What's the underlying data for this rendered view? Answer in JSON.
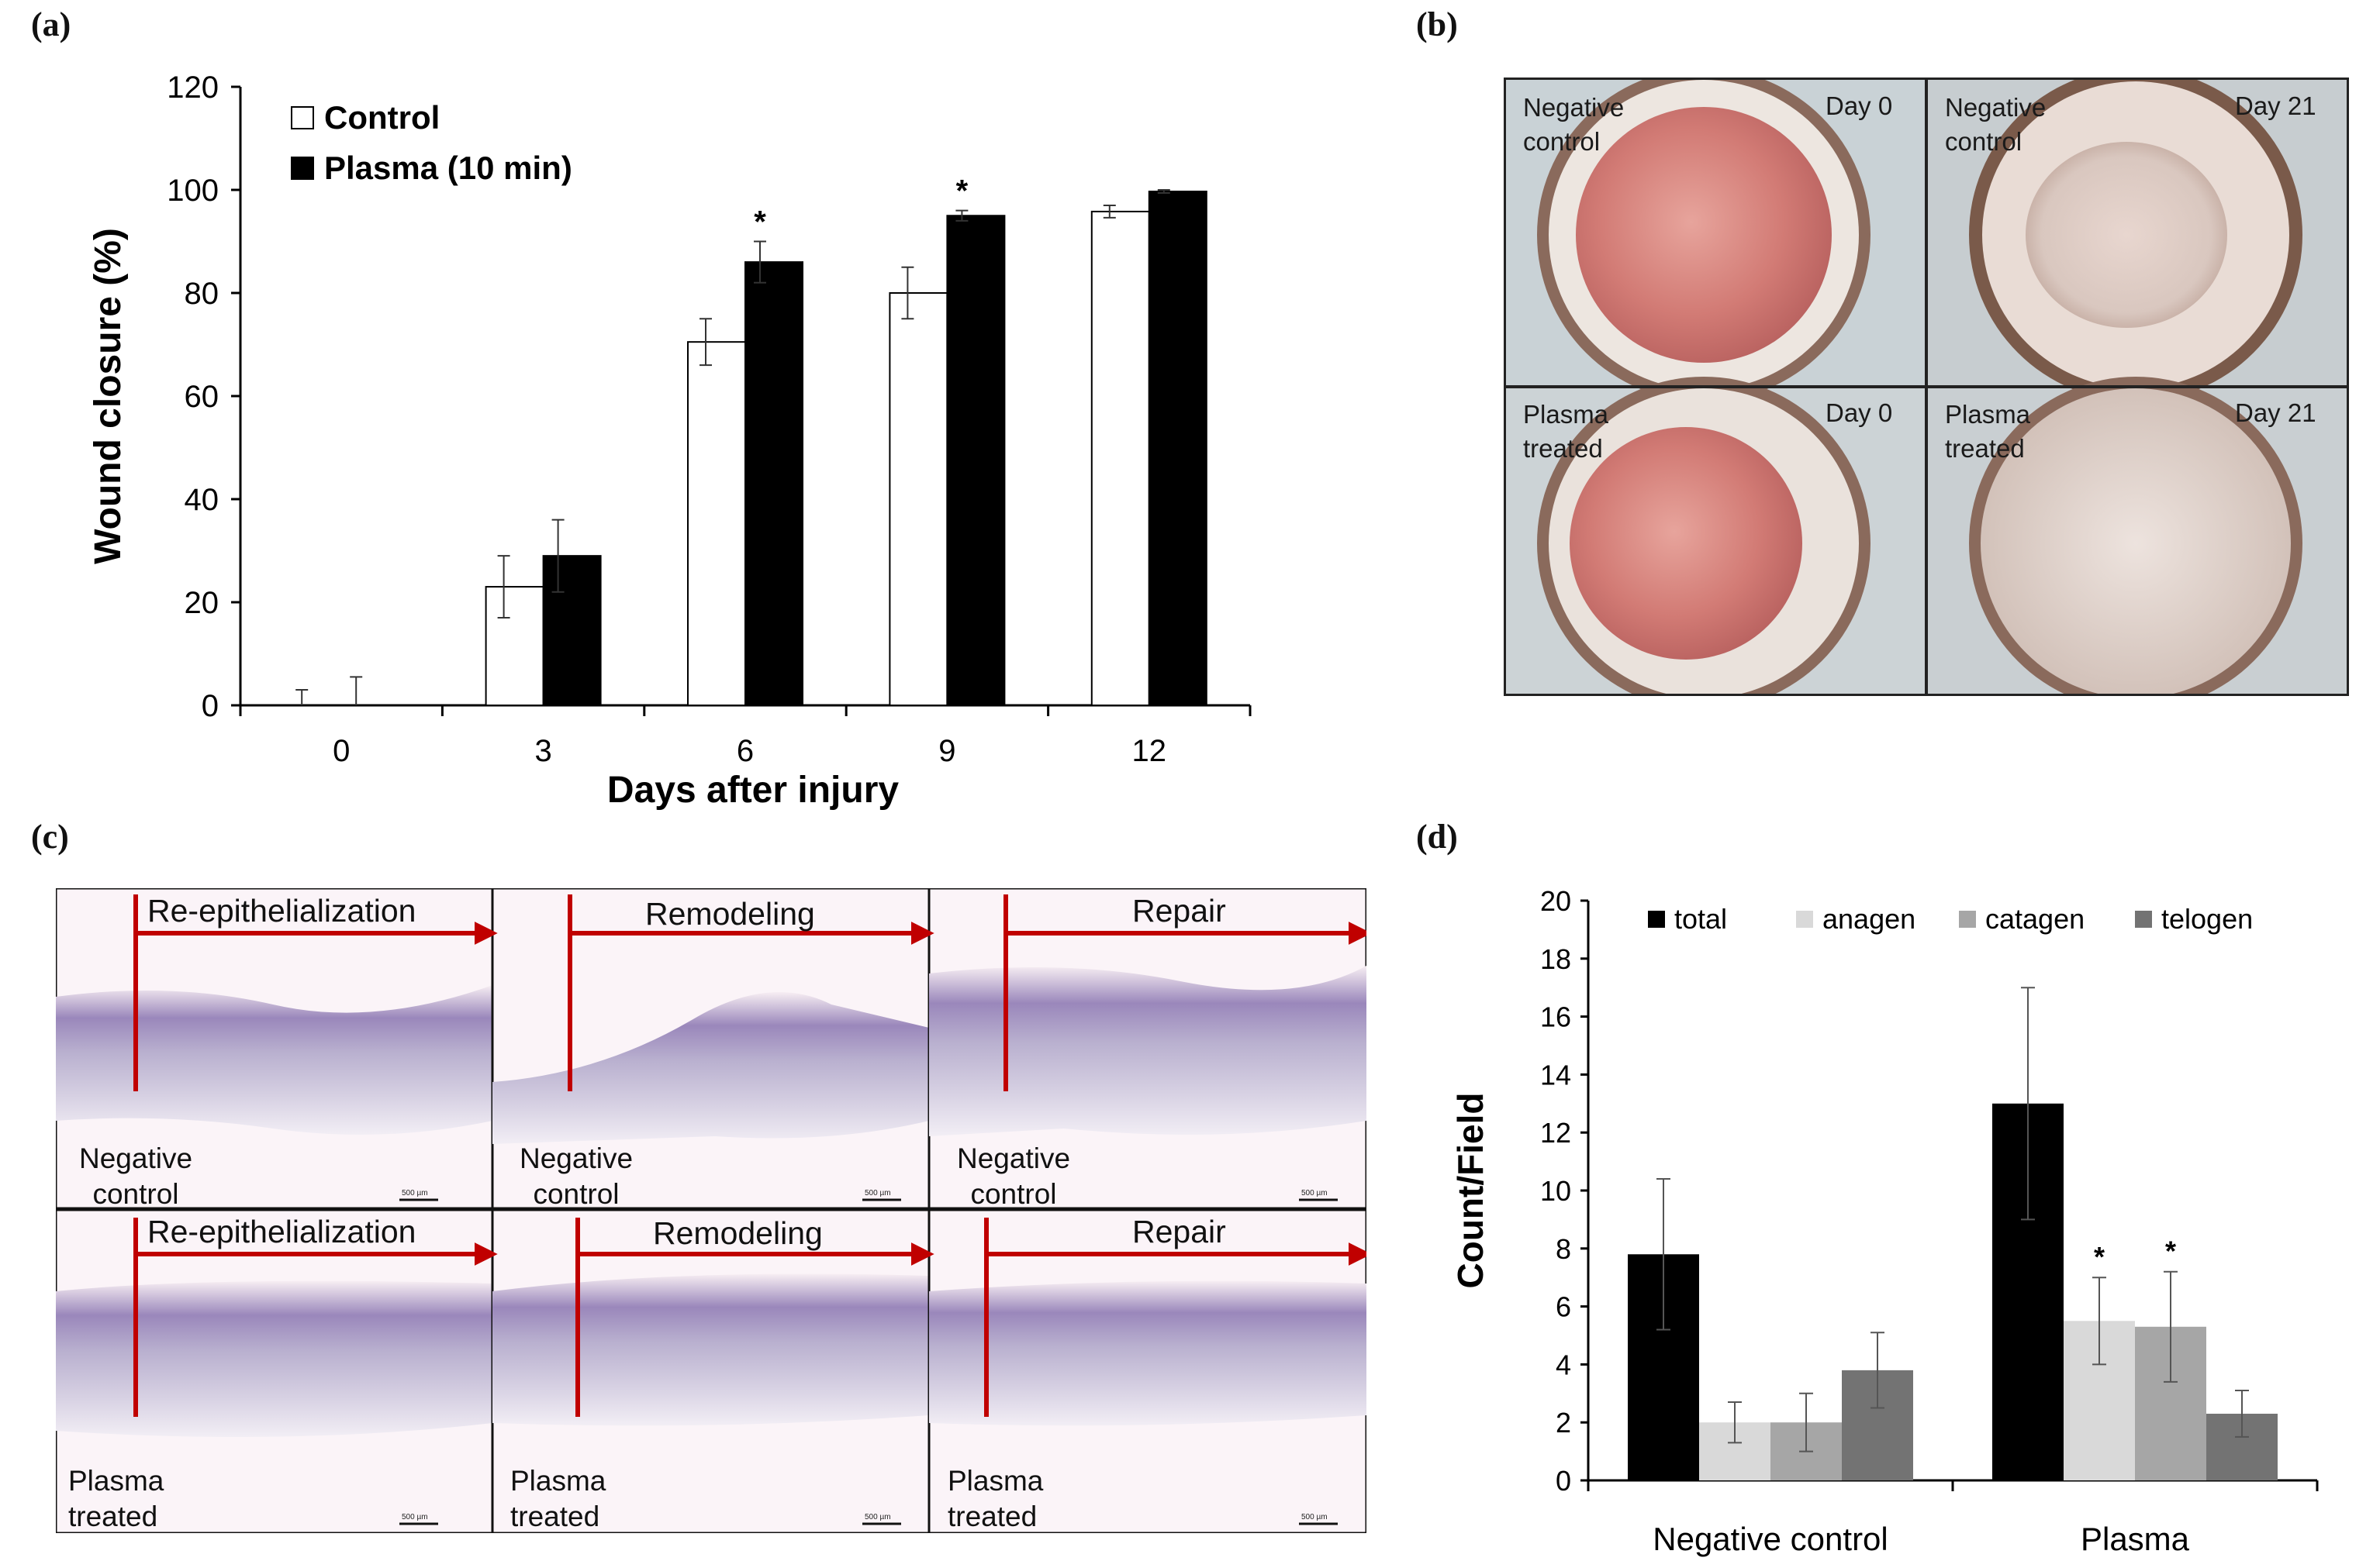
{
  "panels": {
    "a": "(a)",
    "b": "(b)",
    "c": "(c)",
    "d": "(d)"
  },
  "chart_data": [
    {
      "id": "a",
      "type": "bar",
      "title": "",
      "xlabel": "Days after injury",
      "ylabel": "Wound closure (%)",
      "categories": [
        "0",
        "3",
        "6",
        "9",
        "12"
      ],
      "yticks": [
        "0",
        "20",
        "40",
        "60",
        "80",
        "100",
        "120"
      ],
      "ylim": [
        0,
        120
      ],
      "legend_position": "top-left",
      "series": [
        {
          "name": "Control",
          "color": "#ffffff",
          "values": [
            0,
            23,
            70.5,
            80,
            95.8
          ],
          "errors": [
            3,
            6,
            4.5,
            5,
            1.2
          ]
        },
        {
          "name": "Plasma (10 min)",
          "color": "#000000",
          "values": [
            0,
            29,
            86,
            95,
            99.7
          ],
          "errors": [
            5.5,
            7,
            4,
            1,
            0.3
          ]
        }
      ],
      "annotations": [
        {
          "category": "6",
          "text": "*"
        },
        {
          "category": "9",
          "text": "*"
        }
      ]
    },
    {
      "id": "d",
      "type": "bar",
      "title": "",
      "xlabel": "",
      "ylabel": "Count/Field",
      "categories": [
        "Negative control",
        "Plasma"
      ],
      "yticks": [
        "0",
        "2",
        "4",
        "6",
        "8",
        "10",
        "12",
        "14",
        "16",
        "18",
        "20"
      ],
      "ylim": [
        0,
        20
      ],
      "legend_position": "top",
      "series": [
        {
          "name": "total",
          "color": "#000000",
          "values": [
            7.8,
            13.0
          ],
          "errors": [
            2.6,
            4.0
          ]
        },
        {
          "name": "anagen",
          "color": "#d9d9d9",
          "values": [
            2.0,
            5.5
          ],
          "errors": [
            0.7,
            1.5
          ]
        },
        {
          "name": "catagen",
          "color": "#a6a6a6",
          "values": [
            2.0,
            5.3
          ],
          "errors": [
            1.0,
            1.9
          ]
        },
        {
          "name": "telogen",
          "color": "#737373",
          "values": [
            3.8,
            2.3
          ],
          "errors": [
            1.3,
            0.8
          ]
        }
      ],
      "annotations": [
        {
          "category": "Plasma",
          "series": "anagen",
          "text": "*"
        },
        {
          "category": "Plasma",
          "series": "catagen",
          "text": "*"
        }
      ]
    }
  ],
  "photos_b": [
    {
      "label": "Negative control",
      "day": "Day 0"
    },
    {
      "label": "Negative control",
      "day": "Day 21"
    },
    {
      "label": "Plasma treated",
      "day": "Day 0"
    },
    {
      "label": "Plasma treated",
      "day": "Day 21"
    }
  ],
  "histology_c": {
    "phases": [
      "Re-epithelialization",
      "Remodeling",
      "Repair"
    ],
    "rows": [
      "Negative control",
      "Plasma treated"
    ],
    "scale_bar": "500 µm"
  }
}
